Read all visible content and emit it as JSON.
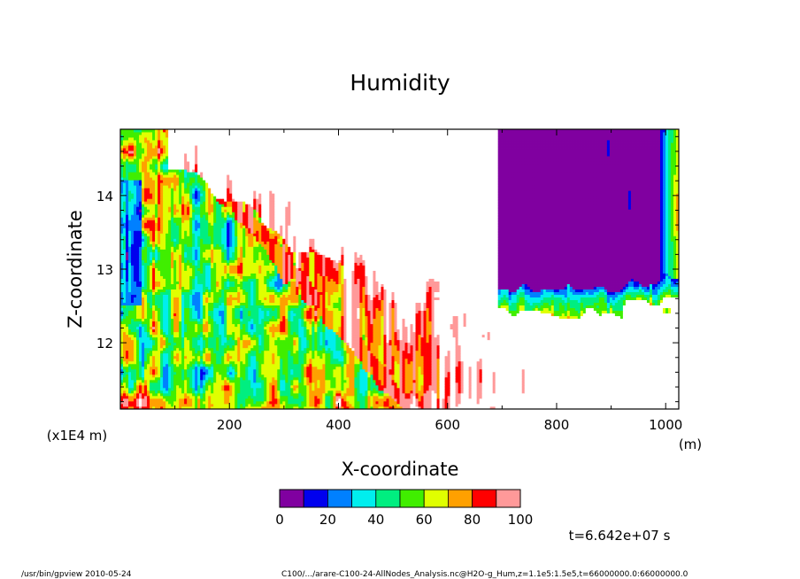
{
  "chart_data": {
    "type": "heatmap",
    "title": "Humidity",
    "xlabel": "X-coordinate",
    "ylabel": "Z-coordinate",
    "x_unit": "(m)",
    "y_unit": "(x1E4 m)",
    "xlim": [
      0,
      1024
    ],
    "ylim": [
      11.1,
      14.9
    ],
    "x_ticks": [
      200,
      400,
      600,
      800,
      1000
    ],
    "y_ticks": [
      12,
      13,
      14
    ],
    "x_tick_labels": [
      "200",
      "400",
      "600",
      "800",
      "1000"
    ],
    "y_tick_labels": [
      "12",
      "13",
      "14"
    ],
    "colorbar": {
      "levels": [
        0,
        10,
        20,
        30,
        40,
        50,
        60,
        70,
        80,
        90,
        100
      ],
      "tick_labels": [
        "0",
        "20",
        "40",
        "60",
        "80",
        "100"
      ],
      "colors": [
        "#8000a0",
        "#0000ee",
        "#0080ff",
        "#00eeee",
        "#00ee80",
        "#40ee00",
        "#e0ff00",
        "#ffa000",
        "#ff0000",
        "#ff9999"
      ],
      "above_max_color": "#ffffff"
    },
    "time_label": "t=6.642e+07 s"
  },
  "footer": {
    "left": "/usr/bin/gpview   2010-05-24",
    "right": "C100/.../arare-C100-24-AllNodes_Analysis.nc@H2O-g_Hum,z=1.1e5:1.5e5,t=66000000.0:66000000.0"
  }
}
